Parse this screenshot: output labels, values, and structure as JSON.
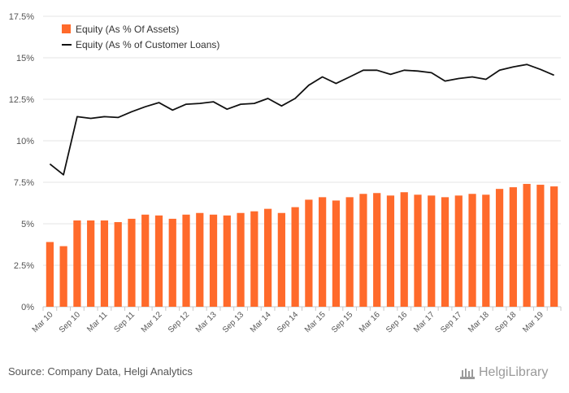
{
  "chart_data": {
    "type": "bar+line",
    "categories": [
      "Mar 10",
      "Jun 10",
      "Sep 10",
      "Dec 10",
      "Mar 11",
      "Jun 11",
      "Sep 11",
      "Dec 11",
      "Mar 12",
      "Jun 12",
      "Sep 12",
      "Dec 12",
      "Mar 13",
      "Jun 13",
      "Sep 13",
      "Dec 13",
      "Mar 14",
      "Jun 14",
      "Sep 14",
      "Dec 14",
      "Mar 15",
      "Jun 15",
      "Sep 15",
      "Dec 15",
      "Mar 16",
      "Jun 16",
      "Sep 16",
      "Dec 16",
      "Mar 17",
      "Jun 17",
      "Sep 17",
      "Dec 17",
      "Mar 18",
      "Jun 18",
      "Sep 18",
      "Dec 18",
      "Mar 19",
      "Jun 19"
    ],
    "tick_labels": [
      "Mar 10",
      "Sep 10",
      "Mar 11",
      "Sep 11",
      "Mar 12",
      "Sep 12",
      "Mar 13",
      "Sep 13",
      "Mar 14",
      "Sep 14",
      "Mar 15",
      "Sep 15",
      "Mar 16",
      "Sep 16",
      "Mar 17",
      "Sep 17",
      "Mar 18",
      "Sep 18",
      "Mar 19"
    ],
    "series": [
      {
        "name": "Equity (As % Of Assets)",
        "kind": "bar",
        "color": "#ff6a2b",
        "values": [
          3.9,
          3.65,
          5.2,
          5.2,
          5.2,
          5.1,
          5.3,
          5.55,
          5.5,
          5.3,
          5.55,
          5.65,
          5.55,
          5.5,
          5.65,
          5.75,
          5.9,
          5.65,
          6.0,
          6.45,
          6.6,
          6.4,
          6.6,
          6.8,
          6.85,
          6.7,
          6.9,
          6.75,
          6.7,
          6.6,
          6.7,
          6.8,
          6.75,
          7.1,
          7.2,
          7.4,
          7.35,
          7.25
        ]
      },
      {
        "name": "Equity (As % of Customer Loans)",
        "kind": "line",
        "color": "#111111",
        "values": [
          8.6,
          7.95,
          11.45,
          11.35,
          11.45,
          11.4,
          11.75,
          12.05,
          12.3,
          11.85,
          12.2,
          12.25,
          12.35,
          11.9,
          12.2,
          12.25,
          12.55,
          12.1,
          12.55,
          13.35,
          13.85,
          13.45,
          13.85,
          14.25,
          14.25,
          14.0,
          14.25,
          14.2,
          14.1,
          13.6,
          13.75,
          13.85,
          13.7,
          14.25,
          14.45,
          14.6,
          14.3,
          13.95
        ]
      }
    ],
    "yticks": [
      "0%",
      "2.5%",
      "5%",
      "7.5%",
      "10%",
      "12.5%",
      "15%",
      "17.5%"
    ],
    "ylim": [
      0,
      17.5
    ],
    "legend": "top-left"
  },
  "footer": {
    "source": "Source: Company Data, Helgi Analytics",
    "logo_text": "HelgiLibrary"
  }
}
